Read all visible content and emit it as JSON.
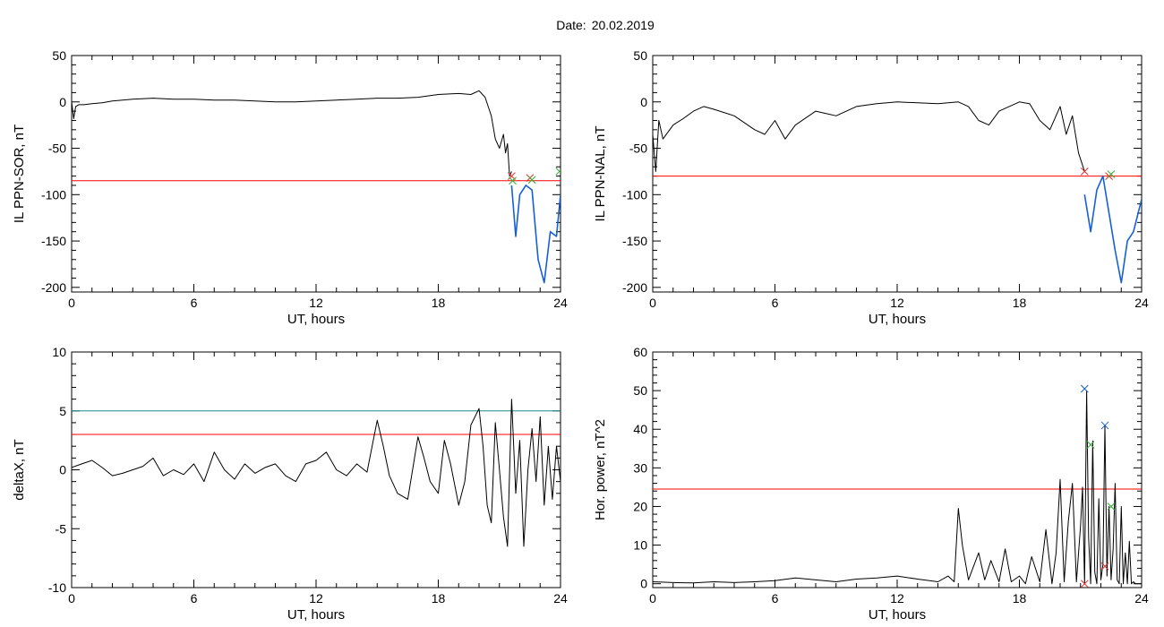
{
  "figure": {
    "date_label": "Date:",
    "date_value": "20.02.2019"
  },
  "colors": {
    "trace": "#000000",
    "threshold_red": "#ff0000",
    "threshold_teal": "#1a8a8a",
    "highlight_blue": "#1560d8",
    "marker_red": "#e03030",
    "marker_green": "#30b030",
    "marker_blue": "#1a60d0"
  },
  "chart_data": [
    {
      "type": "line",
      "xlabel": "UT, hours",
      "ylabel": "IL PPN-SOR, nT",
      "xlim": [
        0,
        24
      ],
      "ylim": [
        -205,
        50
      ],
      "xticks": [
        0,
        6,
        12,
        18,
        24
      ],
      "yticks": [
        50,
        0,
        -50,
        -100,
        -150,
        -200
      ],
      "thresholds": [
        {
          "value": -85,
          "color": "red"
        }
      ],
      "series": [
        {
          "color": "black",
          "x": [
            0,
            0.1,
            0.2,
            0.35,
            0.6,
            1,
            1.5,
            2,
            3,
            4,
            5,
            6,
            7,
            8,
            9,
            10,
            11,
            12,
            13,
            14,
            15,
            16,
            17,
            18,
            19,
            19.6,
            20,
            20.3,
            20.6,
            20.8,
            21.0,
            21.2,
            21.3,
            21.4,
            21.5,
            21.6
          ],
          "y": [
            0,
            -18,
            -5,
            -3,
            -3,
            -2,
            -1,
            1,
            3,
            4,
            3,
            3,
            2,
            2,
            1,
            0,
            0,
            1,
            2,
            3,
            4,
            4,
            5,
            8,
            9,
            8,
            12,
            5,
            -15,
            -40,
            -50,
            -35,
            -55,
            -45,
            -80,
            -75
          ]
        },
        {
          "color": "blue",
          "x": [
            21.6,
            21.8,
            22.0,
            22.3,
            22.6,
            22.9,
            23.2,
            23.5,
            23.8,
            24.0
          ],
          "y": [
            -90,
            -145,
            -100,
            -90,
            -95,
            -170,
            -195,
            -140,
            -145,
            -100
          ]
        }
      ],
      "markers": [
        {
          "x": 21.6,
          "y": -80,
          "color": "red"
        },
        {
          "x": 21.65,
          "y": -85,
          "color": "green"
        },
        {
          "x": 22.5,
          "y": -82,
          "color": "red"
        },
        {
          "x": 22.6,
          "y": -84,
          "color": "green"
        },
        {
          "x": 23.95,
          "y": -75,
          "color": "green"
        }
      ]
    },
    {
      "type": "line",
      "xlabel": "UT, hours",
      "ylabel": "IL PPN-NAL, nT",
      "xlim": [
        0,
        24
      ],
      "ylim": [
        -205,
        50
      ],
      "xticks": [
        0,
        6,
        12,
        18,
        24
      ],
      "yticks": [
        50,
        0,
        -50,
        -100,
        -150,
        -200
      ],
      "thresholds": [
        {
          "value": -80,
          "color": "red"
        }
      ],
      "series": [
        {
          "color": "black",
          "x": [
            0,
            0.15,
            0.3,
            0.5,
            1,
            1.5,
            2,
            2.5,
            3,
            4,
            5,
            5.5,
            6,
            6.5,
            7,
            8,
            9,
            10,
            11,
            12,
            13,
            14,
            15,
            15.5,
            16,
            16.5,
            17,
            17.5,
            18,
            18.5,
            19,
            19.5,
            20,
            20.3,
            20.6,
            20.9,
            21.2
          ],
          "y": [
            -35,
            -75,
            -20,
            -40,
            -25,
            -18,
            -10,
            -5,
            -8,
            -15,
            -30,
            -35,
            -20,
            -40,
            -25,
            -10,
            -15,
            -5,
            -2,
            0,
            -1,
            -2,
            0,
            -5,
            -20,
            -25,
            -10,
            -5,
            0,
            -2,
            -20,
            -30,
            -5,
            -35,
            -15,
            -55,
            -75
          ]
        },
        {
          "color": "blue",
          "x": [
            21.2,
            21.5,
            21.8,
            22.1,
            22.4,
            22.7,
            23.0,
            23.3,
            23.6,
            24.0
          ],
          "y": [
            -100,
            -140,
            -95,
            -80,
            -120,
            -160,
            -195,
            -150,
            -140,
            -105
          ]
        }
      ],
      "markers": [
        {
          "x": 21.2,
          "y": -75,
          "color": "red"
        },
        {
          "x": 22.4,
          "y": -80,
          "color": "red"
        },
        {
          "x": 22.5,
          "y": -78,
          "color": "green"
        }
      ]
    },
    {
      "type": "line",
      "xlabel": "UT, hours",
      "ylabel": "deltaX, nT",
      "xlim": [
        0,
        24
      ],
      "ylim": [
        -10,
        10
      ],
      "xticks": [
        0,
        6,
        12,
        18,
        24
      ],
      "yticks": [
        10,
        5,
        0,
        -5,
        -10
      ],
      "thresholds": [
        {
          "value": 5,
          "color": "teal"
        },
        {
          "value": 3,
          "color": "red"
        }
      ],
      "series": [
        {
          "color": "black",
          "x": [
            0,
            0.5,
            1,
            1.5,
            2,
            2.5,
            3,
            3.5,
            4,
            4.5,
            5,
            5.5,
            6,
            6.5,
            7,
            7.5,
            8,
            8.5,
            9,
            9.5,
            10,
            10.5,
            11,
            11.5,
            12,
            12.5,
            13,
            13.5,
            14,
            14.5,
            15,
            15.3,
            15.6,
            16,
            16.5,
            17,
            17.3,
            17.6,
            18,
            18.3,
            18.6,
            19,
            19.3,
            19.6,
            20,
            20.2,
            20.4,
            20.6,
            20.8,
            21,
            21.2,
            21.4,
            21.6,
            21.8,
            22,
            22.2,
            22.4,
            22.6,
            22.8,
            23,
            23.2,
            23.4,
            23.6,
            23.8,
            24
          ],
          "y": [
            0.2,
            0.5,
            0.8,
            0.2,
            -0.5,
            -0.3,
            0,
            0.3,
            1,
            -0.5,
            0,
            -0.4,
            0.5,
            -1,
            1.5,
            0,
            -0.8,
            0.5,
            -0.3,
            0.2,
            0.5,
            -0.5,
            -1,
            0.5,
            0.8,
            1.5,
            0,
            -0.5,
            0.5,
            -0.2,
            4.2,
            2,
            -0.5,
            -2,
            -2.5,
            2.8,
            1,
            -1,
            -2,
            2.5,
            0.5,
            -3,
            -1,
            3.8,
            5.2,
            2,
            -3,
            -4.5,
            4,
            0,
            -4,
            -6.5,
            6,
            -2,
            2.5,
            -6.5,
            0,
            3.5,
            -1,
            4.5,
            -3,
            2,
            -2.5,
            2,
            -1
          ]
        }
      ],
      "markers": []
    },
    {
      "type": "line",
      "xlabel": "UT, hours",
      "ylabel": "Hor. power, nT^2",
      "xlim": [
        0,
        24
      ],
      "ylim": [
        -1,
        60
      ],
      "xticks": [
        0,
        6,
        12,
        18,
        24
      ],
      "yticks": [
        60,
        50,
        40,
        30,
        20,
        10,
        0
      ],
      "thresholds": [
        {
          "value": 24.5,
          "color": "red"
        }
      ],
      "series": [
        {
          "color": "black",
          "x": [
            0,
            1,
            2,
            3,
            4,
            5,
            6,
            7,
            8,
            9,
            10,
            11,
            12,
            13,
            14,
            14.5,
            14.8,
            15,
            15.2,
            15.5,
            16,
            16.3,
            16.6,
            17,
            17.3,
            17.6,
            18,
            18.3,
            18.6,
            19,
            19.3,
            19.6,
            19.8,
            20,
            20.2,
            20.4,
            20.6,
            20.8,
            21,
            21.1,
            21.2,
            21.3,
            21.4,
            21.5,
            21.6,
            21.7,
            21.8,
            21.9,
            22,
            22.1,
            22.2,
            22.3,
            22.4,
            22.5,
            22.6,
            22.7,
            22.8,
            22.9,
            23,
            23.1,
            23.2,
            23.3,
            23.4,
            23.5,
            23.6,
            23.7,
            23.8,
            23.9,
            24
          ],
          "y": [
            0.5,
            0.3,
            0.2,
            0.5,
            0.3,
            0.5,
            0.8,
            1.5,
            1,
            0.5,
            1.2,
            1.5,
            2,
            1.2,
            0.5,
            2,
            0.5,
            19.5,
            10,
            1,
            8,
            1,
            6,
            0.5,
            9,
            0.5,
            2,
            0,
            7,
            0.5,
            14,
            0,
            8,
            27,
            0.5,
            16,
            26,
            0.5,
            15,
            25,
            0,
            50,
            12,
            0,
            37,
            3,
            0,
            22,
            1,
            5,
            41,
            2,
            20,
            1,
            9,
            26,
            1,
            0,
            20,
            0,
            8,
            0,
            11,
            0,
            0.5,
            0,
            0,
            0,
            0
          ]
        }
      ],
      "markers": [
        {
          "x": 21.2,
          "y": 50.5,
          "color": "blue"
        },
        {
          "x": 22.2,
          "y": 41,
          "color": "blue"
        },
        {
          "x": 21.5,
          "y": 36,
          "color": "green"
        },
        {
          "x": 22.5,
          "y": 20,
          "color": "green"
        },
        {
          "x": 21.2,
          "y": 0,
          "color": "red"
        },
        {
          "x": 22.2,
          "y": 4.5,
          "color": "red"
        }
      ]
    }
  ]
}
